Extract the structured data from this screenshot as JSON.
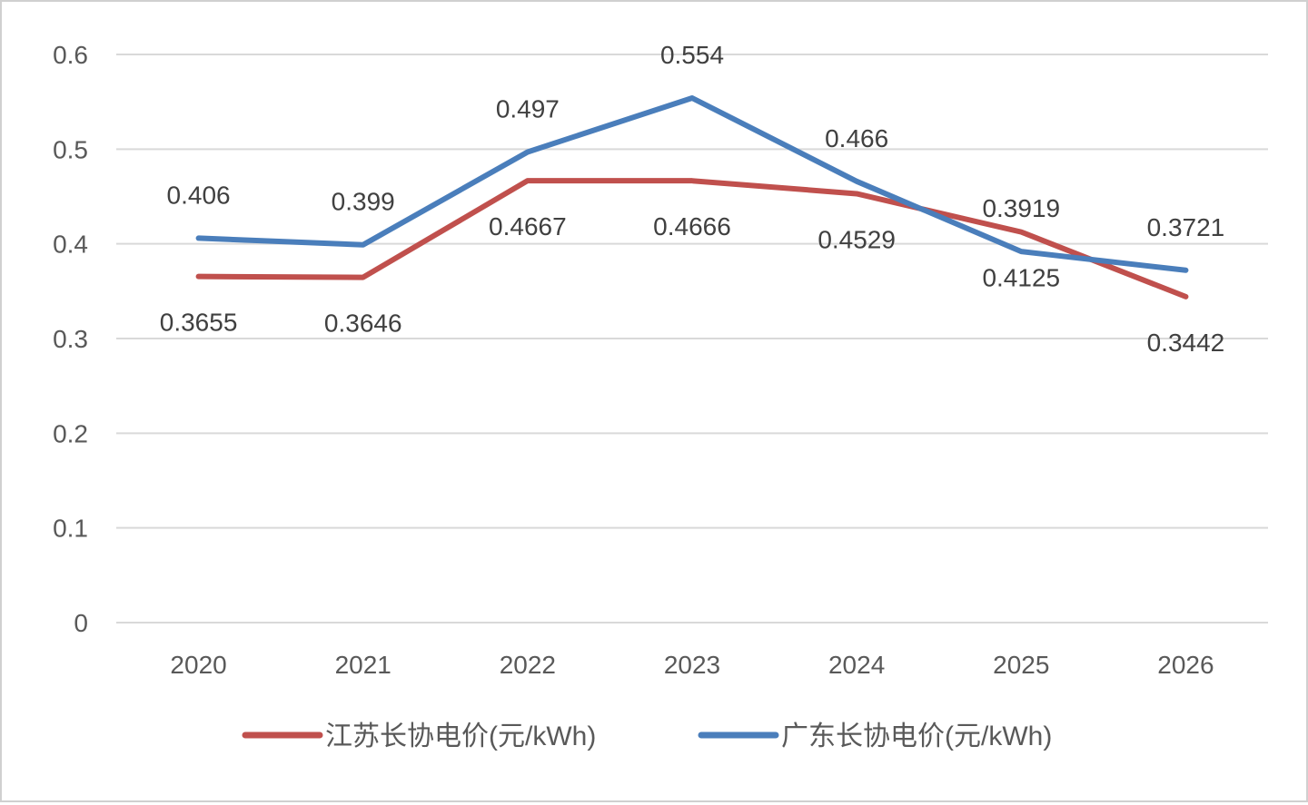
{
  "chart_data": {
    "type": "line",
    "categories": [
      "2020",
      "2021",
      "2022",
      "2023",
      "2024",
      "2025",
      "2026"
    ],
    "series": [
      {
        "name": "江苏长协电价(元/kWh)",
        "color": "#c0504d",
        "values": [
          0.3655,
          0.3646,
          0.4667,
          0.4666,
          0.4529,
          0.4125,
          0.3442
        ],
        "labels": [
          "0.3655",
          "0.3646",
          "0.4667",
          "0.4666",
          "0.4529",
          "0.4125",
          "0.3442"
        ],
        "label_side": [
          "below",
          "below",
          "below",
          "below",
          "below",
          "below",
          "below"
        ]
      },
      {
        "name": "广东长协电价(元/kWh)",
        "color": "#4a7ebb",
        "values": [
          0.406,
          0.399,
          0.497,
          0.554,
          0.466,
          0.3919,
          0.3721
        ],
        "labels": [
          "0.406",
          "0.399",
          "0.497",
          "0.554",
          "0.466",
          "0.3919",
          "0.3721"
        ],
        "label_side": [
          "above",
          "above",
          "above",
          "above",
          "above",
          "above",
          "above"
        ]
      }
    ],
    "yticks": [
      "0",
      "0.1",
      "0.2",
      "0.3",
      "0.4",
      "0.5",
      "0.6"
    ],
    "ylim": [
      0,
      0.6
    ],
    "grid": true,
    "legend_position": "bottom",
    "title": "",
    "xlabel": "",
    "ylabel": ""
  }
}
